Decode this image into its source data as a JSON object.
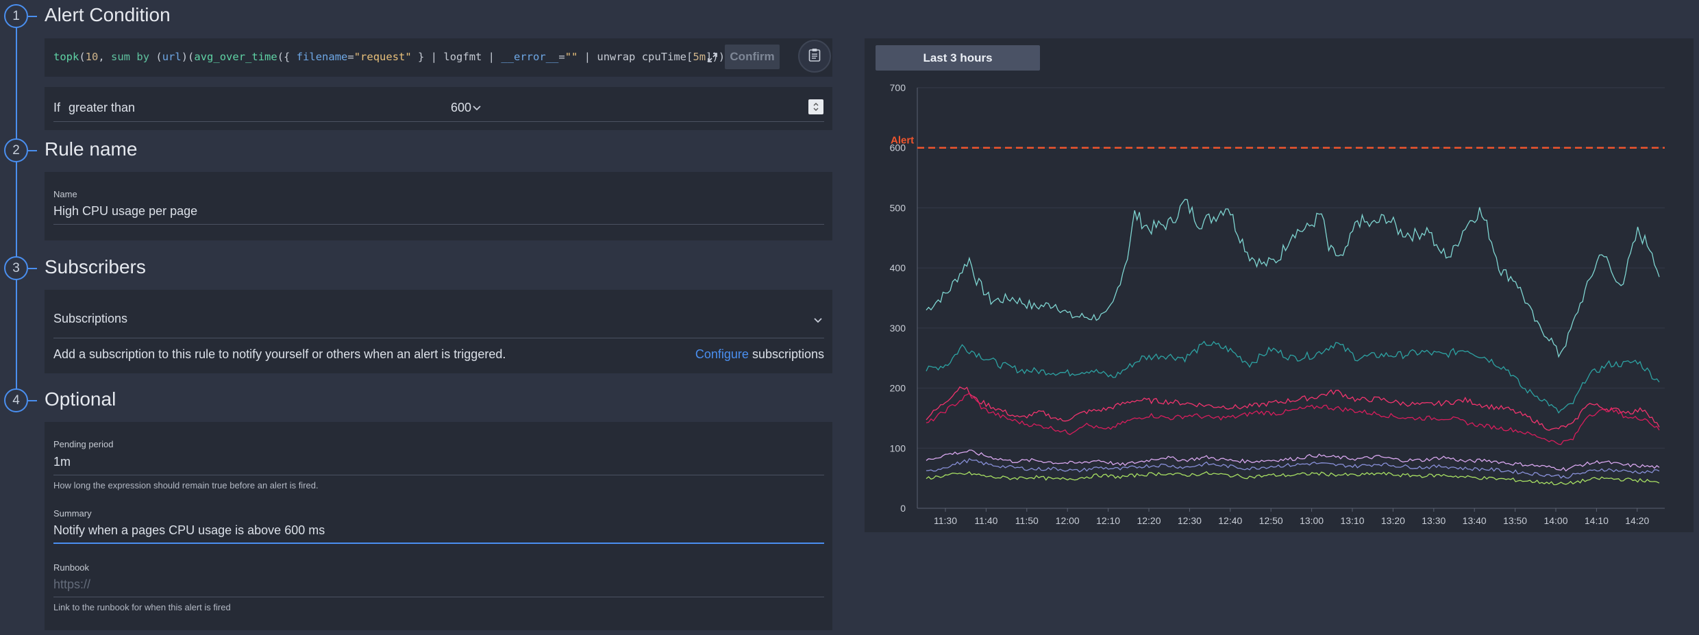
{
  "steps": [
    {
      "number": "1",
      "title": "Alert Condition"
    },
    {
      "number": "2",
      "title": "Rule name"
    },
    {
      "number": "3",
      "title": "Subscribers"
    },
    {
      "number": "4",
      "title": "Optional"
    }
  ],
  "query": {
    "tokens": [
      {
        "t": "topk",
        "c": "q-fn"
      },
      {
        "t": "(",
        "c": ""
      },
      {
        "t": "10",
        "c": "q-num"
      },
      {
        "t": ", ",
        "c": ""
      },
      {
        "t": "sum",
        "c": "q-kw"
      },
      {
        "t": " ",
        "c": ""
      },
      {
        "t": "by",
        "c": "q-kw"
      },
      {
        "t": " (",
        "c": ""
      },
      {
        "t": "url",
        "c": "q-lbl"
      },
      {
        "t": ")(",
        "c": ""
      },
      {
        "t": "avg_over_time",
        "c": "q-fn"
      },
      {
        "t": "({ ",
        "c": ""
      },
      {
        "t": "filename",
        "c": "q-lbl"
      },
      {
        "t": "=",
        "c": ""
      },
      {
        "t": "\"request\"",
        "c": "q-str"
      },
      {
        "t": " } | logfmt | ",
        "c": ""
      },
      {
        "t": "__error__",
        "c": "q-lbl"
      },
      {
        "t": "=",
        "c": ""
      },
      {
        "t": "\"\"",
        "c": "q-str"
      },
      {
        "t": " | unwrap cpuTime[",
        "c": ""
      },
      {
        "t": "5m",
        "c": "q-num"
      },
      {
        "t": "])))",
        "c": ""
      }
    ],
    "confirm_label": "Confirm",
    "expand_icon": "expand-icon",
    "clipboard_icon": "clipboard-icon"
  },
  "condition": {
    "if_label": "If",
    "operator": "greater than",
    "threshold": "600"
  },
  "rule_name": {
    "label": "Name",
    "value": "High CPU usage per page"
  },
  "subscribers": {
    "dropdown_label": "Subscriptions",
    "description": "Add a subscription to this rule to notify yourself or others when an alert is triggered.",
    "configure_link": "Configure",
    "configure_suffix": "subscriptions"
  },
  "optional": {
    "pending_label": "Pending period",
    "pending_value": "1m",
    "pending_help": "How long the expression should remain true before an alert is fired.",
    "summary_label": "Summary",
    "summary_value": "Notify when a pages CPU usage is above 600 ms",
    "runbook_label": "Runbook",
    "runbook_placeholder": "https://",
    "runbook_help": "Link to the runbook for when this alert is fired"
  },
  "colors": {
    "accent": "#4a8ff0",
    "alert_line": "#f0552d",
    "link": "#4a8ff0"
  },
  "chart_data": {
    "type": "line",
    "range_label": "Last 3 hours",
    "ylim": [
      0,
      700
    ],
    "yticks": [
      "0",
      "100",
      "200",
      "300",
      "400",
      "500",
      "600",
      "700"
    ],
    "xticks": [
      "11:30",
      "11:40",
      "11:50",
      "12:00",
      "12:10",
      "12:20",
      "12:30",
      "12:40",
      "12:50",
      "13:00",
      "13:10",
      "13:20",
      "13:30",
      "13:40",
      "13:50",
      "14:00",
      "14:10",
      "14:20"
    ],
    "threshold": {
      "label": "Alert",
      "value": 600
    },
    "series": [
      {
        "color": "#7fd6d2",
        "points": [
          [
            0,
            330
          ],
          [
            3,
            360
          ],
          [
            6,
            415
          ],
          [
            7,
            380
          ],
          [
            9,
            345
          ],
          [
            12,
            350
          ],
          [
            15,
            335
          ],
          [
            18,
            340
          ],
          [
            20,
            320
          ],
          [
            23,
            318
          ],
          [
            25,
            320
          ],
          [
            26,
            340
          ],
          [
            28,
            420
          ],
          [
            29,
            490
          ],
          [
            31,
            465
          ],
          [
            34,
            475
          ],
          [
            36,
            510
          ],
          [
            38,
            475
          ],
          [
            40,
            485
          ],
          [
            42,
            505
          ],
          [
            43,
            470
          ],
          [
            45,
            420
          ],
          [
            47,
            405
          ],
          [
            49,
            415
          ],
          [
            51,
            460
          ],
          [
            53,
            465
          ],
          [
            55,
            490
          ],
          [
            56,
            430
          ],
          [
            58,
            415
          ],
          [
            60,
            480
          ],
          [
            62,
            470
          ],
          [
            64,
            485
          ],
          [
            66,
            460
          ],
          [
            68,
            455
          ],
          [
            70,
            465
          ],
          [
            71,
            430
          ],
          [
            73,
            420
          ],
          [
            75,
            470
          ],
          [
            77,
            495
          ],
          [
            78,
            470
          ],
          [
            80,
            395
          ],
          [
            82,
            380
          ],
          [
            84,
            330
          ],
          [
            85,
            305
          ],
          [
            87,
            280
          ],
          [
            88,
            255
          ],
          [
            89,
            275
          ],
          [
            91,
            340
          ],
          [
            93,
            400
          ],
          [
            94,
            430
          ],
          [
            96,
            375
          ],
          [
            97,
            380
          ],
          [
            99,
            460
          ],
          [
            101,
            430
          ],
          [
            102,
            385
          ]
        ]
      },
      {
        "color": "#2da3a3",
        "points": [
          [
            0,
            230
          ],
          [
            3,
            240
          ],
          [
            5,
            270
          ],
          [
            7,
            258
          ],
          [
            10,
            240
          ],
          [
            13,
            230
          ],
          [
            16,
            228
          ],
          [
            20,
            225
          ],
          [
            23,
            230
          ],
          [
            26,
            218
          ],
          [
            30,
            250
          ],
          [
            33,
            255
          ],
          [
            36,
            250
          ],
          [
            39,
            275
          ],
          [
            42,
            265
          ],
          [
            45,
            240
          ],
          [
            48,
            265
          ],
          [
            51,
            250
          ],
          [
            54,
            255
          ],
          [
            57,
            275
          ],
          [
            60,
            250
          ],
          [
            63,
            255
          ],
          [
            66,
            255
          ],
          [
            69,
            260
          ],
          [
            72,
            255
          ],
          [
            75,
            265
          ],
          [
            78,
            250
          ],
          [
            81,
            230
          ],
          [
            83,
            200
          ],
          [
            86,
            180
          ],
          [
            88,
            160
          ],
          [
            90,
            175
          ],
          [
            92,
            220
          ],
          [
            95,
            240
          ],
          [
            97,
            240
          ],
          [
            99,
            245
          ],
          [
            102,
            210
          ]
        ]
      },
      {
        "color": "#f2346e",
        "points": [
          [
            0,
            150
          ],
          [
            2,
            170
          ],
          [
            5,
            205
          ],
          [
            7,
            180
          ],
          [
            10,
            165
          ],
          [
            13,
            150
          ],
          [
            16,
            160
          ],
          [
            19,
            145
          ],
          [
            22,
            160
          ],
          [
            25,
            165
          ],
          [
            29,
            180
          ],
          [
            33,
            178
          ],
          [
            36,
            175
          ],
          [
            40,
            170
          ],
          [
            44,
            168
          ],
          [
            48,
            175
          ],
          [
            51,
            180
          ],
          [
            54,
            185
          ],
          [
            57,
            195
          ],
          [
            60,
            180
          ],
          [
            63,
            182
          ],
          [
            66,
            175
          ],
          [
            69,
            172
          ],
          [
            72,
            175
          ],
          [
            75,
            180
          ],
          [
            78,
            170
          ],
          [
            81,
            165
          ],
          [
            84,
            150
          ],
          [
            87,
            130
          ],
          [
            90,
            140
          ],
          [
            92,
            175
          ],
          [
            95,
            165
          ],
          [
            98,
            160
          ],
          [
            100,
            165
          ],
          [
            102,
            135
          ]
        ]
      },
      {
        "color": "#d81d5c",
        "points": [
          [
            0,
            140
          ],
          [
            3,
            165
          ],
          [
            6,
            190
          ],
          [
            8,
            165
          ],
          [
            11,
            150
          ],
          [
            14,
            140
          ],
          [
            17,
            135
          ],
          [
            20,
            125
          ],
          [
            22,
            140
          ],
          [
            25,
            130
          ],
          [
            28,
            145
          ],
          [
            31,
            155
          ],
          [
            34,
            150
          ],
          [
            37,
            155
          ],
          [
            40,
            150
          ],
          [
            43,
            152
          ],
          [
            46,
            160
          ],
          [
            49,
            158
          ],
          [
            52,
            165
          ],
          [
            55,
            170
          ],
          [
            58,
            165
          ],
          [
            61,
            160
          ],
          [
            64,
            155
          ],
          [
            67,
            150
          ],
          [
            70,
            150
          ],
          [
            73,
            150
          ],
          [
            76,
            140
          ],
          [
            79,
            135
          ],
          [
            82,
            130
          ],
          [
            85,
            120
          ],
          [
            88,
            108
          ],
          [
            90,
            115
          ],
          [
            92,
            155
          ],
          [
            95,
            165
          ],
          [
            98,
            150
          ],
          [
            100,
            150
          ],
          [
            102,
            130
          ]
        ]
      },
      {
        "color": "#d9a8f0",
        "points": [
          [
            0,
            80
          ],
          [
            3,
            90
          ],
          [
            6,
            95
          ],
          [
            9,
            85
          ],
          [
            12,
            78
          ],
          [
            15,
            80
          ],
          [
            18,
            76
          ],
          [
            21,
            75
          ],
          [
            24,
            80
          ],
          [
            27,
            72
          ],
          [
            30,
            78
          ],
          [
            33,
            85
          ],
          [
            36,
            80
          ],
          [
            39,
            85
          ],
          [
            42,
            80
          ],
          [
            45,
            78
          ],
          [
            48,
            80
          ],
          [
            51,
            82
          ],
          [
            54,
            88
          ],
          [
            57,
            85
          ],
          [
            60,
            82
          ],
          [
            63,
            86
          ],
          [
            66,
            80
          ],
          [
            69,
            80
          ],
          [
            72,
            85
          ],
          [
            75,
            78
          ],
          [
            78,
            80
          ],
          [
            81,
            75
          ],
          [
            84,
            72
          ],
          [
            87,
            68
          ],
          [
            89,
            65
          ],
          [
            91,
            72
          ],
          [
            94,
            78
          ],
          [
            97,
            72
          ],
          [
            100,
            70
          ],
          [
            102,
            68
          ]
        ]
      },
      {
        "color": "#8890d8",
        "points": [
          [
            0,
            60
          ],
          [
            3,
            70
          ],
          [
            6,
            80
          ],
          [
            9,
            72
          ],
          [
            12,
            68
          ],
          [
            15,
            65
          ],
          [
            18,
            66
          ],
          [
            21,
            62
          ],
          [
            24,
            68
          ],
          [
            27,
            65
          ],
          [
            30,
            70
          ],
          [
            33,
            72
          ],
          [
            36,
            68
          ],
          [
            39,
            74
          ],
          [
            42,
            70
          ],
          [
            45,
            66
          ],
          [
            48,
            70
          ],
          [
            51,
            72
          ],
          [
            54,
            75
          ],
          [
            57,
            72
          ],
          [
            60,
            70
          ],
          [
            63,
            74
          ],
          [
            66,
            70
          ],
          [
            69,
            68
          ],
          [
            72,
            70
          ],
          [
            75,
            66
          ],
          [
            78,
            65
          ],
          [
            81,
            62
          ],
          [
            84,
            58
          ],
          [
            87,
            55
          ],
          [
            89,
            52
          ],
          [
            91,
            58
          ],
          [
            94,
            65
          ],
          [
            97,
            62
          ],
          [
            100,
            60
          ],
          [
            102,
            62
          ]
        ]
      },
      {
        "color": "#a8e063",
        "points": [
          [
            0,
            50
          ],
          [
            3,
            55
          ],
          [
            6,
            58
          ],
          [
            9,
            52
          ],
          [
            12,
            50
          ],
          [
            15,
            52
          ],
          [
            18,
            48
          ],
          [
            21,
            50
          ],
          [
            24,
            55
          ],
          [
            27,
            52
          ],
          [
            30,
            56
          ],
          [
            33,
            58
          ],
          [
            36,
            55
          ],
          [
            39,
            58
          ],
          [
            42,
            55
          ],
          [
            45,
            52
          ],
          [
            48,
            55
          ],
          [
            51,
            55
          ],
          [
            54,
            58
          ],
          [
            57,
            56
          ],
          [
            60,
            55
          ],
          [
            63,
            58
          ],
          [
            66,
            55
          ],
          [
            69,
            54
          ],
          [
            72,
            55
          ],
          [
            75,
            52
          ],
          [
            78,
            50
          ],
          [
            81,
            48
          ],
          [
            84,
            45
          ],
          [
            87,
            42
          ],
          [
            89,
            40
          ],
          [
            91,
            45
          ],
          [
            94,
            50
          ],
          [
            97,
            48
          ],
          [
            100,
            46
          ],
          [
            102,
            42
          ]
        ]
      }
    ]
  }
}
